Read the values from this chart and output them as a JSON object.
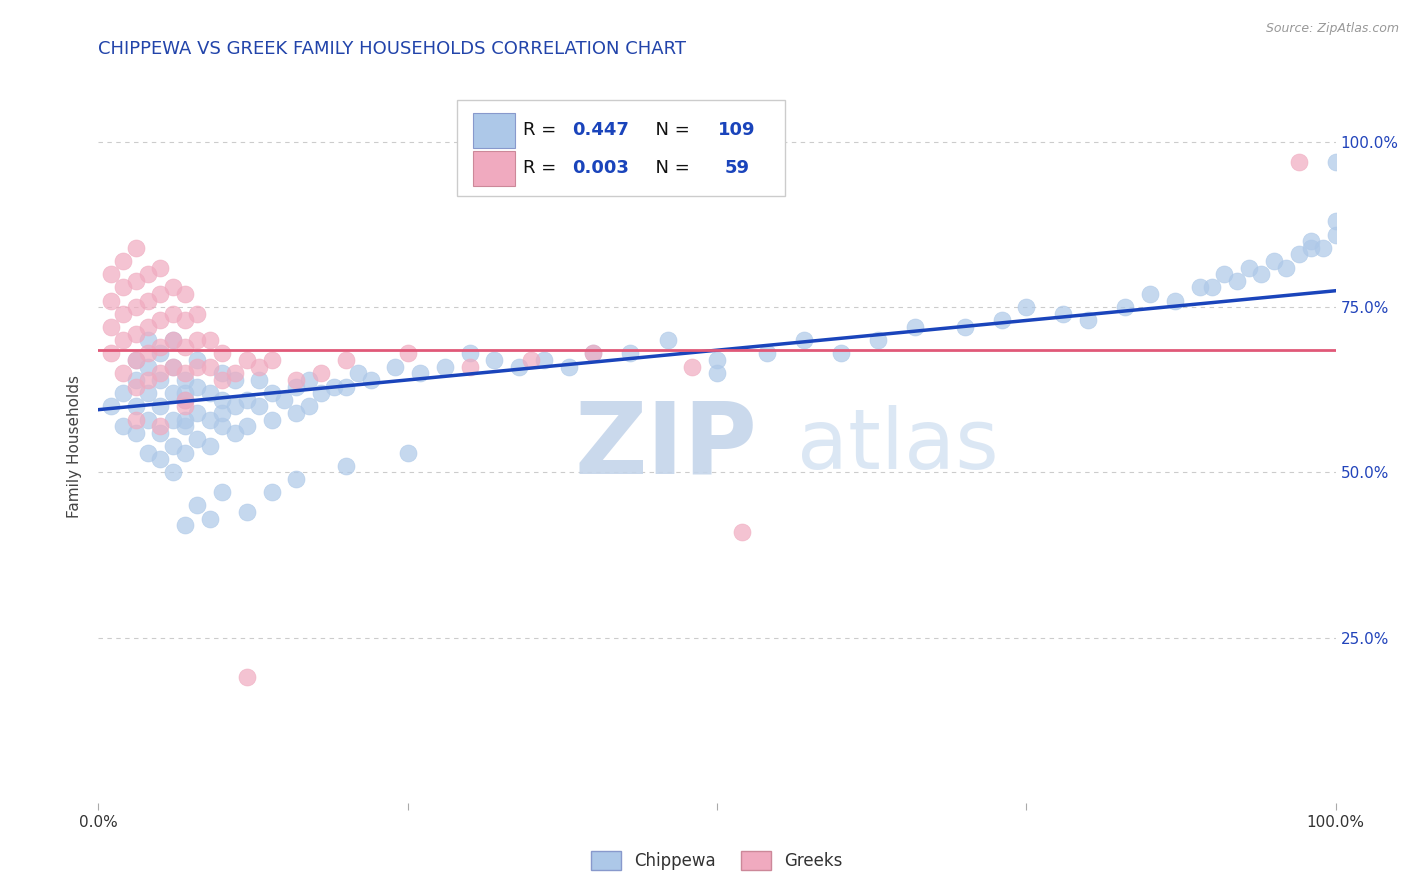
{
  "title": "CHIPPEWA VS GREEK FAMILY HOUSEHOLDS CORRELATION CHART",
  "source_text": "Source: ZipAtlas.com",
  "ylabel": "Family Households",
  "xlim": [
    0,
    1
  ],
  "ylim": [
    0,
    1.08
  ],
  "blue_R": 0.447,
  "blue_N": 109,
  "pink_R": 0.003,
  "pink_N": 59,
  "blue_color": "#adc8e8",
  "pink_color": "#f0aabf",
  "blue_line_color": "#1a44bb",
  "pink_line_color": "#e05878",
  "title_color": "#2244aa",
  "source_color": "#999999",
  "watermark_zip_color": "#c0cfe8",
  "watermark_atlas_color": "#c8daf0",
  "legend_label_blue": "Chippewa",
  "legend_label_pink": "Greeks",
  "ytick_positions": [
    0.25,
    0.5,
    0.75,
    1.0
  ],
  "ytick_labels": [
    "25.0%",
    "50.0%",
    "75.0%",
    "100.0%"
  ],
  "xtick_positions": [
    0.0,
    0.25,
    0.5,
    0.75,
    1.0
  ],
  "blue_scatter_x": [
    0.01,
    0.02,
    0.02,
    0.03,
    0.03,
    0.03,
    0.03,
    0.04,
    0.04,
    0.04,
    0.04,
    0.04,
    0.05,
    0.05,
    0.05,
    0.05,
    0.05,
    0.06,
    0.06,
    0.06,
    0.06,
    0.06,
    0.06,
    0.07,
    0.07,
    0.07,
    0.07,
    0.07,
    0.07,
    0.08,
    0.08,
    0.08,
    0.08,
    0.09,
    0.09,
    0.09,
    0.1,
    0.1,
    0.1,
    0.1,
    0.11,
    0.11,
    0.11,
    0.12,
    0.12,
    0.13,
    0.13,
    0.14,
    0.14,
    0.15,
    0.16,
    0.16,
    0.17,
    0.17,
    0.18,
    0.19,
    0.2,
    0.21,
    0.22,
    0.24,
    0.26,
    0.28,
    0.3,
    0.32,
    0.34,
    0.36,
    0.38,
    0.4,
    0.43,
    0.46,
    0.5,
    0.5,
    0.54,
    0.57,
    0.6,
    0.63,
    0.66,
    0.7,
    0.73,
    0.75,
    0.78,
    0.8,
    0.83,
    0.85,
    0.87,
    0.89,
    0.9,
    0.91,
    0.92,
    0.93,
    0.94,
    0.95,
    0.96,
    0.97,
    0.98,
    0.98,
    0.99,
    1.0,
    1.0,
    1.0,
    0.07,
    0.08,
    0.09,
    0.1,
    0.12,
    0.14,
    0.16,
    0.2,
    0.25
  ],
  "blue_scatter_y": [
    0.6,
    0.57,
    0.62,
    0.56,
    0.6,
    0.64,
    0.67,
    0.53,
    0.58,
    0.62,
    0.66,
    0.7,
    0.52,
    0.56,
    0.6,
    0.64,
    0.68,
    0.5,
    0.54,
    0.58,
    0.62,
    0.66,
    0.7,
    0.53,
    0.57,
    0.61,
    0.64,
    0.58,
    0.62,
    0.55,
    0.59,
    0.63,
    0.67,
    0.54,
    0.58,
    0.62,
    0.57,
    0.61,
    0.65,
    0.59,
    0.56,
    0.6,
    0.64,
    0.57,
    0.61,
    0.6,
    0.64,
    0.58,
    0.62,
    0.61,
    0.59,
    0.63,
    0.6,
    0.64,
    0.62,
    0.63,
    0.63,
    0.65,
    0.64,
    0.66,
    0.65,
    0.66,
    0.68,
    0.67,
    0.66,
    0.67,
    0.66,
    0.68,
    0.68,
    0.7,
    0.67,
    0.65,
    0.68,
    0.7,
    0.68,
    0.7,
    0.72,
    0.72,
    0.73,
    0.75,
    0.74,
    0.73,
    0.75,
    0.77,
    0.76,
    0.78,
    0.78,
    0.8,
    0.79,
    0.81,
    0.8,
    0.82,
    0.81,
    0.83,
    0.84,
    0.85,
    0.84,
    0.86,
    0.88,
    0.97,
    0.42,
    0.45,
    0.43,
    0.47,
    0.44,
    0.47,
    0.49,
    0.51,
    0.53
  ],
  "pink_scatter_x": [
    0.01,
    0.01,
    0.01,
    0.01,
    0.02,
    0.02,
    0.02,
    0.02,
    0.02,
    0.03,
    0.03,
    0.03,
    0.03,
    0.03,
    0.03,
    0.04,
    0.04,
    0.04,
    0.04,
    0.04,
    0.05,
    0.05,
    0.05,
    0.05,
    0.05,
    0.06,
    0.06,
    0.06,
    0.06,
    0.07,
    0.07,
    0.07,
    0.07,
    0.08,
    0.08,
    0.08,
    0.09,
    0.09,
    0.1,
    0.1,
    0.11,
    0.12,
    0.13,
    0.14,
    0.16,
    0.18,
    0.2,
    0.25,
    0.3,
    0.35,
    0.4,
    0.48,
    0.52,
    0.03,
    0.05,
    0.07,
    0.07,
    0.12,
    0.97
  ],
  "pink_scatter_y": [
    0.68,
    0.72,
    0.76,
    0.8,
    0.65,
    0.7,
    0.74,
    0.78,
    0.82,
    0.63,
    0.67,
    0.71,
    0.75,
    0.79,
    0.84,
    0.64,
    0.68,
    0.72,
    0.76,
    0.8,
    0.65,
    0.69,
    0.73,
    0.77,
    0.81,
    0.66,
    0.7,
    0.74,
    0.78,
    0.65,
    0.69,
    0.73,
    0.77,
    0.66,
    0.7,
    0.74,
    0.66,
    0.7,
    0.64,
    0.68,
    0.65,
    0.67,
    0.66,
    0.67,
    0.64,
    0.65,
    0.67,
    0.68,
    0.66,
    0.67,
    0.68,
    0.66,
    0.41,
    0.58,
    0.57,
    0.61,
    0.6,
    0.19,
    0.97
  ]
}
